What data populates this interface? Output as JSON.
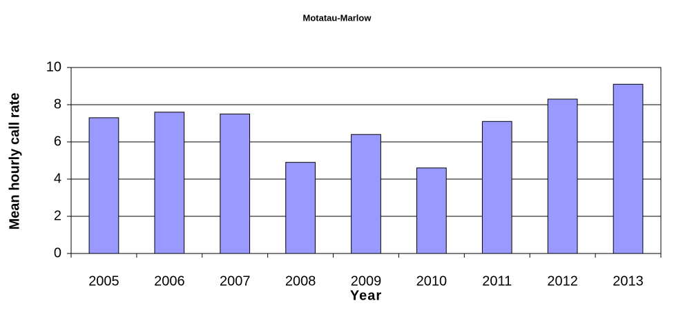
{
  "chart_data": {
    "type": "bar",
    "title": "Motatau-Marlow",
    "x_label": "Year",
    "y_label": "Mean hourly call rate",
    "categories": [
      "2005",
      "2006",
      "2007",
      "2008",
      "2009",
      "2010",
      "2011",
      "2012",
      "2013"
    ],
    "values": [
      7.3,
      7.6,
      7.5,
      4.9,
      6.4,
      4.6,
      7.1,
      8.3,
      9.1
    ],
    "color": "#9999ff",
    "ylim": [
      0,
      10
    ],
    "yticks": [
      0,
      2,
      4,
      6,
      8,
      10
    ],
    "grid": true
  }
}
